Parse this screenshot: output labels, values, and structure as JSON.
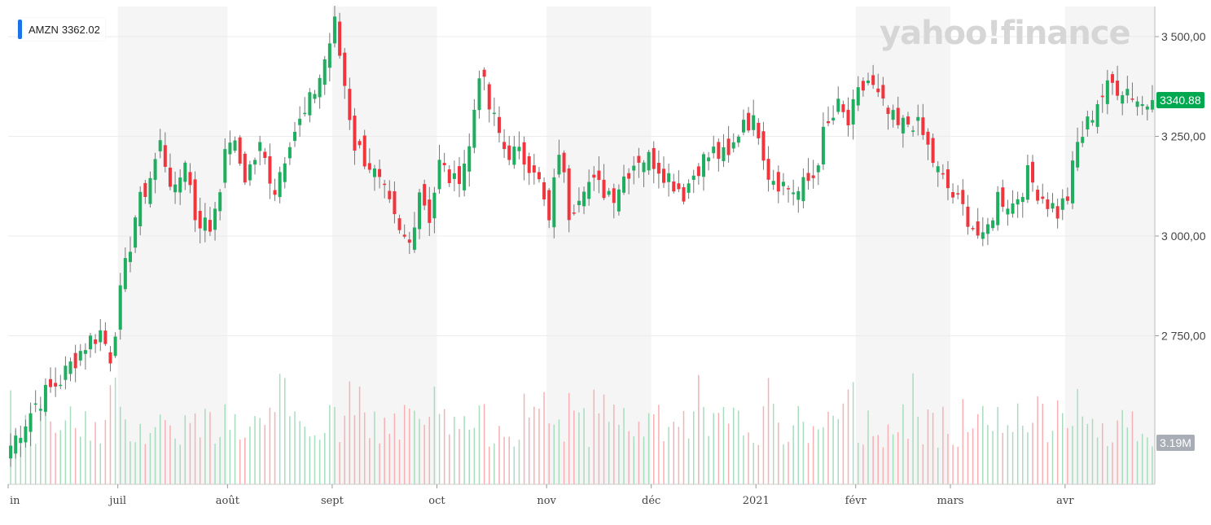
{
  "legend": {
    "symbol": "AMZN",
    "value": "3362.02",
    "color": "#1a73e8"
  },
  "watermark": "yahoo!finance",
  "price_badge": {
    "text": "3340.88",
    "color": "#00a84f"
  },
  "volume_badge": {
    "text": "3.19M",
    "color": "#a9aeb6"
  },
  "colors": {
    "up": "#1fad5f",
    "down": "#f0353c",
    "up_vol": "#a8dcbe",
    "down_vol": "#f7b0b3",
    "band": "#f5f5f5",
    "grid": "#ececec"
  },
  "chart_data": {
    "type": "candlestick",
    "symbol": "AMZN",
    "yaxis": {
      "ticks": [
        "2 750,00",
        "3 000,00",
        "3 250,00",
        "3 500,00"
      ],
      "tick_values": [
        2750,
        3000,
        3250,
        3500
      ],
      "range": [
        2400,
        3560
      ]
    },
    "xaxis": {
      "labels": [
        {
          "text": "in",
          "index": 0
        },
        {
          "text": "juil",
          "index": 22
        },
        {
          "text": "août",
          "index": 44
        },
        {
          "text": "sept",
          "index": 65
        },
        {
          "text": "oct",
          "index": 86
        },
        {
          "text": "nov",
          "index": 108
        },
        {
          "text": "déc",
          "index": 129
        },
        {
          "text": "2021",
          "index": 150
        },
        {
          "text": "févr",
          "index": 170
        },
        {
          "text": "mars",
          "index": 189
        },
        {
          "text": "avr",
          "index": 212
        }
      ]
    },
    "shaded_months": [
      [
        22,
        44
      ],
      [
        65,
        86
      ],
      [
        108,
        129
      ],
      [
        170,
        189
      ],
      [
        212,
        230
      ]
    ],
    "last_price": 3340.88,
    "last_volume": "3.19M",
    "anchors": [
      [
        0,
        2475
      ],
      [
        5,
        2580
      ],
      [
        10,
        2640
      ],
      [
        15,
        2730
      ],
      [
        18,
        2760
      ],
      [
        20,
        2700
      ],
      [
        22,
        2850
      ],
      [
        25,
        3050
      ],
      [
        28,
        3150
      ],
      [
        30,
        3230
      ],
      [
        33,
        3100
      ],
      [
        35,
        3200
      ],
      [
        37,
        3050
      ],
      [
        40,
        3020
      ],
      [
        44,
        3250
      ],
      [
        47,
        3150
      ],
      [
        50,
        3220
      ],
      [
        53,
        3120
      ],
      [
        56,
        3250
      ],
      [
        59,
        3300
      ],
      [
        62,
        3400
      ],
      [
        65,
        3530
      ],
      [
        67,
        3380
      ],
      [
        69,
        3230
      ],
      [
        72,
        3180
      ],
      [
        75,
        3100
      ],
      [
        78,
        3000
      ],
      [
        80,
        2980
      ],
      [
        82,
        3120
      ],
      [
        84,
        3050
      ],
      [
        86,
        3180
      ],
      [
        89,
        3130
      ],
      [
        92,
        3220
      ],
      [
        94,
        3420
      ],
      [
        96,
        3320
      ],
      [
        99,
        3220
      ],
      [
        102,
        3200
      ],
      [
        105,
        3180
      ],
      [
        108,
        3030
      ],
      [
        110,
        3220
      ],
      [
        112,
        3060
      ],
      [
        115,
        3140
      ],
      [
        118,
        3120
      ],
      [
        121,
        3110
      ],
      [
        124,
        3170
      ],
      [
        126,
        3200
      ],
      [
        129,
        3190
      ],
      [
        132,
        3150
      ],
      [
        135,
        3110
      ],
      [
        138,
        3180
      ],
      [
        141,
        3210
      ],
      [
        144,
        3190
      ],
      [
        147,
        3300
      ],
      [
        150,
        3270
      ],
      [
        152,
        3160
      ],
      [
        155,
        3130
      ],
      [
        158,
        3110
      ],
      [
        161,
        3150
      ],
      [
        163,
        3250
      ],
      [
        166,
        3320
      ],
      [
        168,
        3280
      ],
      [
        170,
        3350
      ],
      [
        172,
        3390
      ],
      [
        175,
        3320
      ],
      [
        178,
        3270
      ],
      [
        181,
        3290
      ],
      [
        183,
        3250
      ],
      [
        186,
        3160
      ],
      [
        189,
        3100
      ],
      [
        192,
        3050
      ],
      [
        195,
        2980
      ],
      [
        198,
        3100
      ],
      [
        201,
        3080
      ],
      [
        204,
        3150
      ],
      [
        207,
        3100
      ],
      [
        210,
        3060
      ],
      [
        212,
        3100
      ],
      [
        214,
        3230
      ],
      [
        216,
        3280
      ],
      [
        218,
        3340
      ],
      [
        221,
        3380
      ],
      [
        224,
        3370
      ],
      [
        227,
        3330
      ],
      [
        229,
        3340
      ]
    ]
  }
}
